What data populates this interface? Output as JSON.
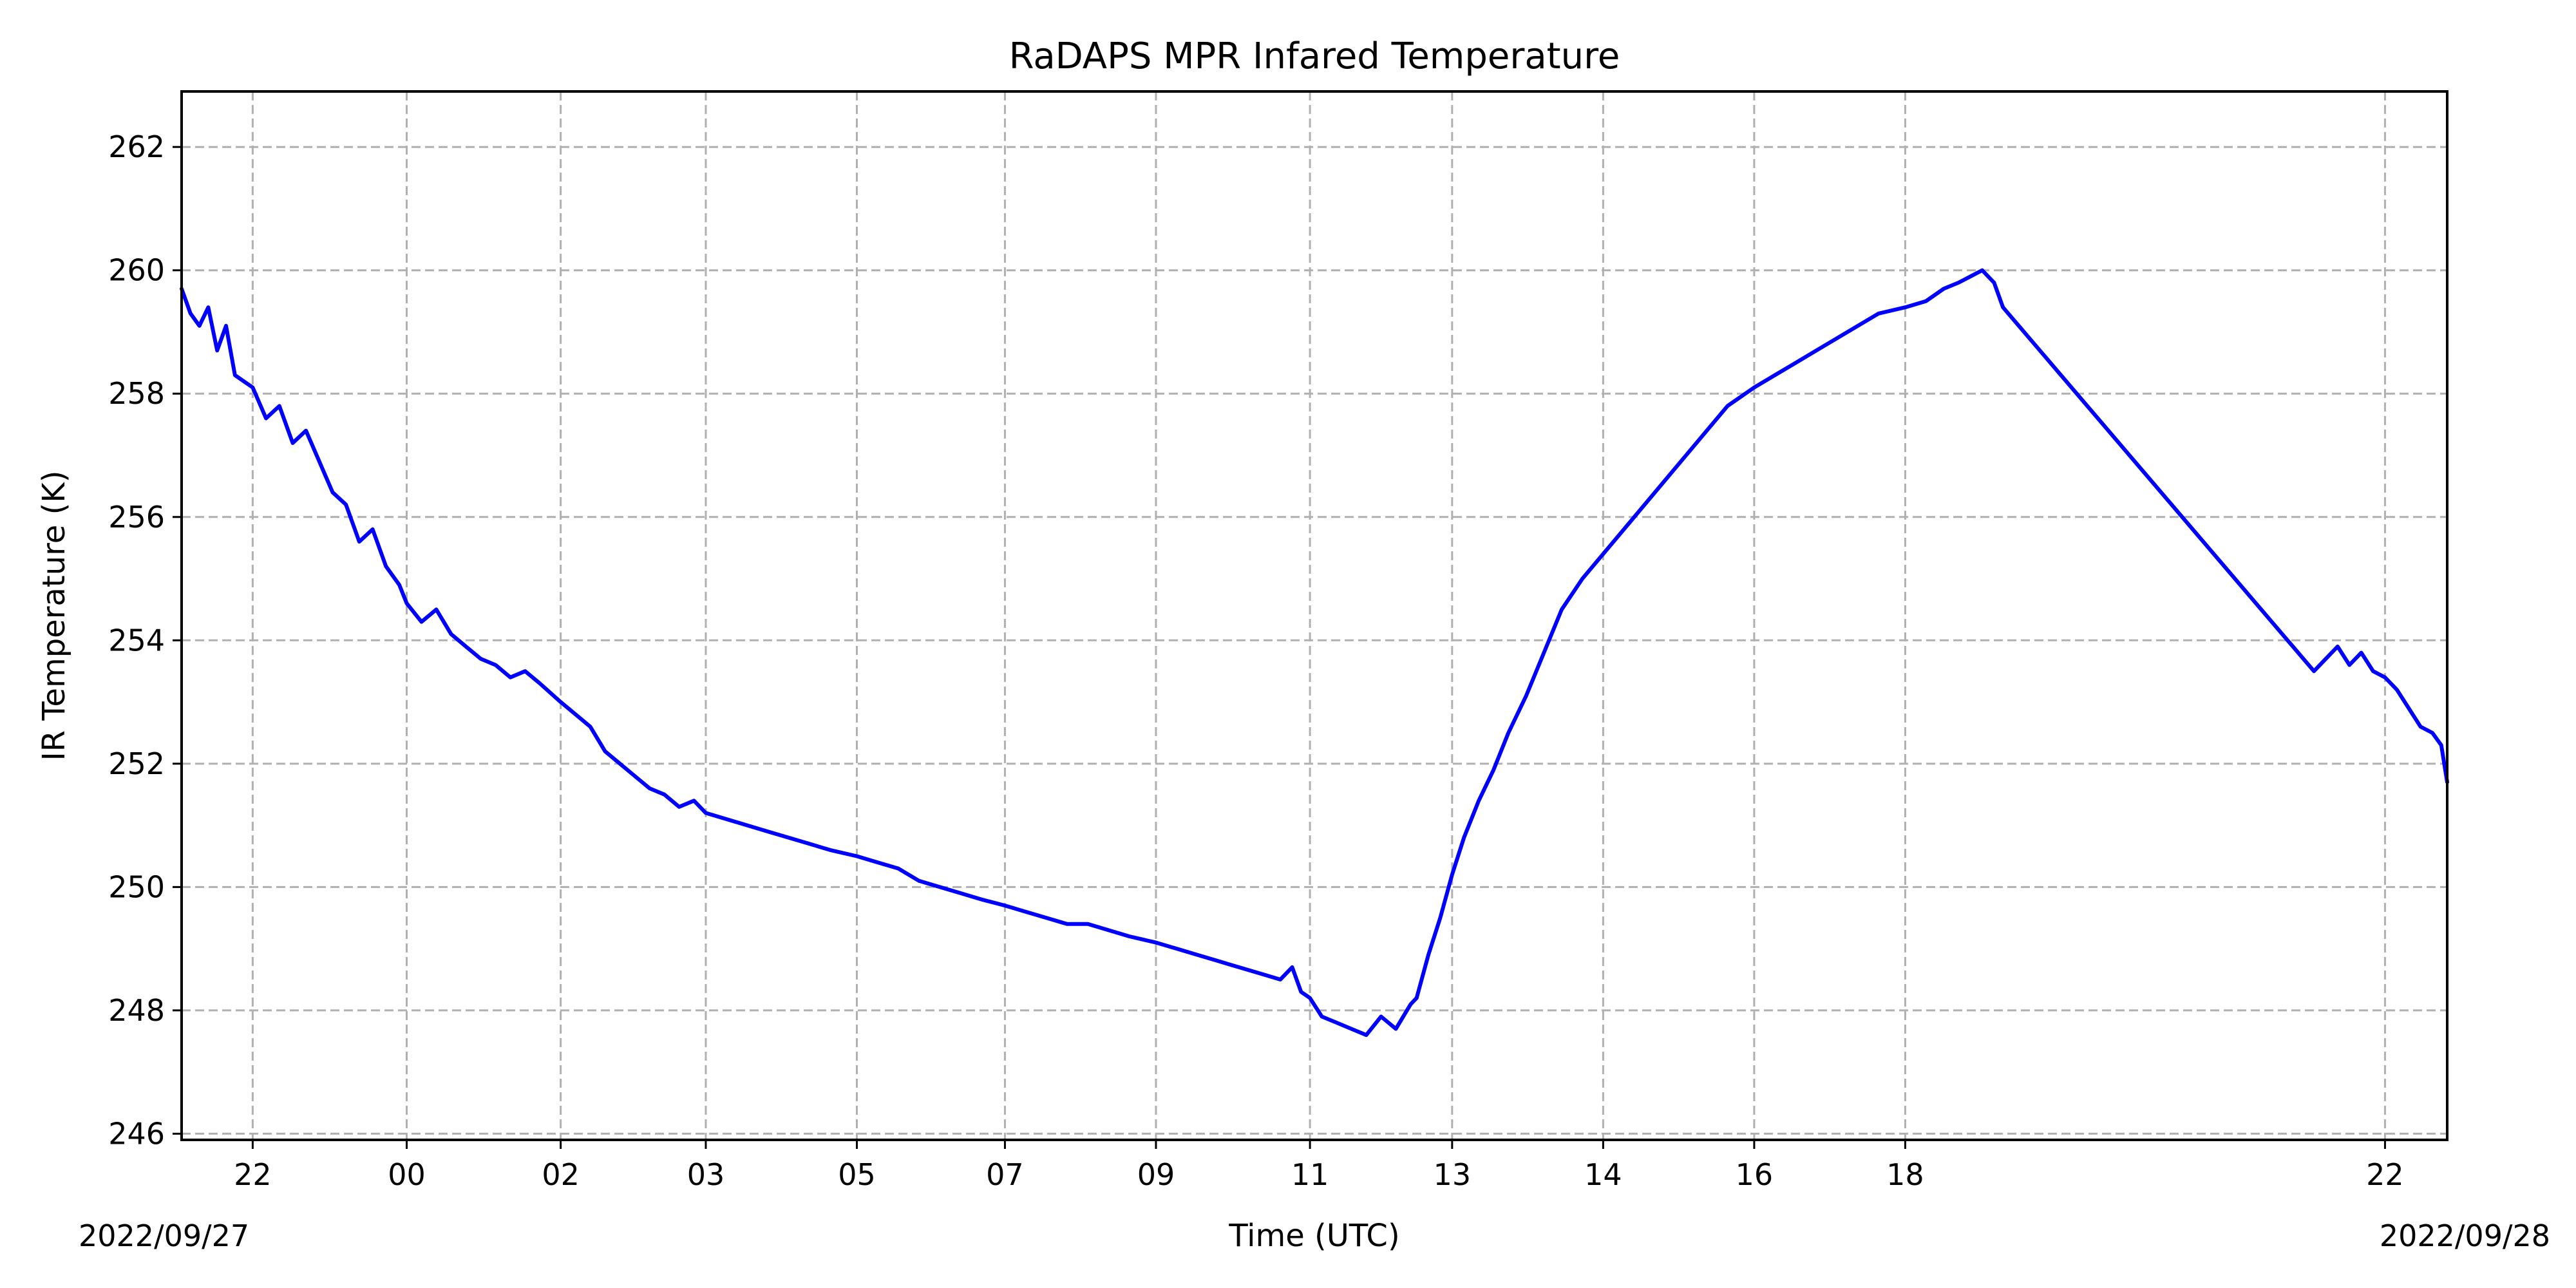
{
  "chart_data": {
    "type": "line",
    "title": "RaDAPS MPR Infared Temperature",
    "xlabel": "Time (UTC)",
    "ylabel": "IR Temperature (K)",
    "grid": true,
    "xlim": [
      "2022-09-27T21:10",
      "2022-09-28T22:40"
    ],
    "ylim": [
      245.9,
      262.9
    ],
    "x_ticks": [
      {
        "t": "2022-09-27T21:58",
        "label": "22"
      },
      {
        "t": "2022-09-27T23:42",
        "label": "00"
      },
      {
        "t": "2022-09-28T01:26",
        "label": "02"
      },
      {
        "t": "2022-09-28T03:04",
        "label": "03"
      },
      {
        "t": "2022-09-28T04:46",
        "label": "05"
      },
      {
        "t": "2022-09-28T06:26",
        "label": "07"
      },
      {
        "t": "2022-09-28T08:08",
        "label": "09"
      },
      {
        "t": "2022-09-28T09:52",
        "label": "11"
      },
      {
        "t": "2022-09-28T11:28",
        "label": "13"
      },
      {
        "t": "2022-09-28T13:10",
        "label": "14"
      },
      {
        "t": "2022-09-28T14:52",
        "label": "16"
      },
      {
        "t": "2022-09-28T16:34",
        "label": "18"
      },
      {
        "t": "2022-09-28T21:58",
        "label": "22"
      }
    ],
    "y_ticks": [
      246,
      248,
      250,
      252,
      254,
      256,
      258,
      260,
      262
    ],
    "date_labels": {
      "start": "2022/09/27",
      "end": "2022/09/28"
    },
    "series": [
      {
        "color": "#0000ff",
        "x": [
          "2022-09-27T21:10",
          "2022-09-27T21:16",
          "2022-09-27T21:22",
          "2022-09-27T21:28",
          "2022-09-27T21:34",
          "2022-09-27T21:40",
          "2022-09-27T21:46",
          "2022-09-27T21:52",
          "2022-09-27T21:58",
          "2022-09-27T22:07",
          "2022-09-27T22:16",
          "2022-09-27T22:25",
          "2022-09-27T22:34",
          "2022-09-27T22:43",
          "2022-09-27T22:52",
          "2022-09-27T23:01",
          "2022-09-27T23:10",
          "2022-09-27T23:19",
          "2022-09-27T23:28",
          "2022-09-27T23:37",
          "2022-09-27T23:42",
          "2022-09-27T23:52",
          "2022-09-28T00:02",
          "2022-09-28T00:12",
          "2022-09-28T00:22",
          "2022-09-28T00:32",
          "2022-09-28T00:42",
          "2022-09-28T00:52",
          "2022-09-28T01:02",
          "2022-09-28T01:12",
          "2022-09-28T01:26",
          "2022-09-28T01:36",
          "2022-09-28T01:46",
          "2022-09-28T01:56",
          "2022-09-28T02:06",
          "2022-09-28T02:16",
          "2022-09-28T02:26",
          "2022-09-28T02:36",
          "2022-09-28T02:46",
          "2022-09-28T02:56",
          "2022-09-28T03:04",
          "2022-09-28T03:18",
          "2022-09-28T03:32",
          "2022-09-28T03:46",
          "2022-09-28T04:00",
          "2022-09-28T04:14",
          "2022-09-28T04:28",
          "2022-09-28T04:46",
          "2022-09-28T05:00",
          "2022-09-28T05:14",
          "2022-09-28T05:28",
          "2022-09-28T05:42",
          "2022-09-28T05:56",
          "2022-09-28T06:10",
          "2022-09-28T06:26",
          "2022-09-28T06:40",
          "2022-09-28T06:54",
          "2022-09-28T07:08",
          "2022-09-28T07:22",
          "2022-09-28T07:36",
          "2022-09-28T07:50",
          "2022-09-28T08:08",
          "2022-09-28T08:22",
          "2022-09-28T08:36",
          "2022-09-28T08:50",
          "2022-09-28T09:04",
          "2022-09-28T09:18",
          "2022-09-28T09:32",
          "2022-09-28T09:40",
          "2022-09-28T09:46",
          "2022-09-28T09:52",
          "2022-09-28T10:00",
          "2022-09-28T10:10",
          "2022-09-28T10:20",
          "2022-09-28T10:30",
          "2022-09-28T10:40",
          "2022-09-28T10:50",
          "2022-09-28T11:00",
          "2022-09-28T11:04",
          "2022-09-28T11:12",
          "2022-09-28T11:20",
          "2022-09-28T11:28",
          "2022-09-28T11:36",
          "2022-09-28T11:46",
          "2022-09-28T11:56",
          "2022-09-28T12:06",
          "2022-09-28T12:18",
          "2022-09-28T12:30",
          "2022-09-28T12:42",
          "2022-09-28T12:56",
          "2022-09-28T13:10",
          "2022-09-28T13:24",
          "2022-09-28T13:38",
          "2022-09-28T13:52",
          "2022-09-28T14:06",
          "2022-09-28T14:20",
          "2022-09-28T14:34",
          "2022-09-28T14:52",
          "2022-09-28T15:06",
          "2022-09-28T15:20",
          "2022-09-28T15:34",
          "2022-09-28T15:48",
          "2022-09-28T16:02",
          "2022-09-28T16:16",
          "2022-09-28T16:34",
          "2022-09-28T16:48",
          "2022-09-28T17:00",
          "2022-09-28T17:10",
          "2022-09-28T17:18",
          "2022-09-28T17:26",
          "2022-09-28T17:34",
          "2022-09-28T17:40",
          "2022-09-28T21:10",
          "2022-09-28T21:18",
          "2022-09-28T21:26",
          "2022-09-28T21:34",
          "2022-09-28T21:42",
          "2022-09-28T21:50",
          "2022-09-28T21:58",
          "2022-09-28T22:06",
          "2022-09-28T22:14",
          "2022-09-28T22:22",
          "2022-09-28T22:30",
          "2022-09-28T22:36",
          "2022-09-28T22:40"
        ],
        "values": [
          259.7,
          259.3,
          259.1,
          259.4,
          258.7,
          259.1,
          258.3,
          258.2,
          258.1,
          257.6,
          257.8,
          257.2,
          257.4,
          256.9,
          256.4,
          256.2,
          255.6,
          255.8,
          255.2,
          254.9,
          254.6,
          254.3,
          254.5,
          254.1,
          253.9,
          253.7,
          253.6,
          253.4,
          253.5,
          253.3,
          253.0,
          252.8,
          252.6,
          252.2,
          252.0,
          251.8,
          251.6,
          251.5,
          251.3,
          251.4,
          251.2,
          251.1,
          251.0,
          250.9,
          250.8,
          250.7,
          250.6,
          250.5,
          250.4,
          250.3,
          250.1,
          250.0,
          249.9,
          249.8,
          249.7,
          249.6,
          249.5,
          249.4,
          249.4,
          249.3,
          249.2,
          249.1,
          249.0,
          248.9,
          248.8,
          248.7,
          248.6,
          248.5,
          248.7,
          248.3,
          248.2,
          247.9,
          247.8,
          247.7,
          247.6,
          247.9,
          247.7,
          248.1,
          248.2,
          248.9,
          249.5,
          250.2,
          250.8,
          251.4,
          251.9,
          252.5,
          253.1,
          253.8,
          254.5,
          255.0,
          255.4,
          255.8,
          256.2,
          256.6,
          257.0,
          257.4,
          257.8,
          258.1,
          258.3,
          258.5,
          258.7,
          258.9,
          259.1,
          259.3,
          259.4,
          259.5,
          259.7,
          259.8,
          259.9,
          260.0,
          259.8,
          259.4,
          253.5,
          253.7,
          253.9,
          253.6,
          253.8,
          253.5,
          253.4,
          253.2,
          252.9,
          252.6,
          252.5,
          252.3,
          251.7
        ]
      }
    ]
  }
}
